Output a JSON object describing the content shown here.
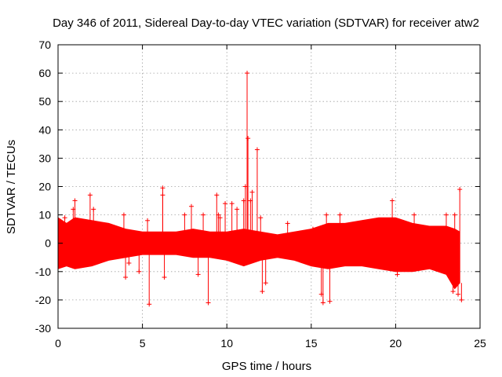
{
  "chart_data": {
    "type": "scatter",
    "title": "Day 346 of 2011, Sidereal Day-to-day VTEC variation (SDTVAR) for receiver atw2",
    "xlabel": "GPS time / hours",
    "ylabel": "SDTVAR / TECUs",
    "xlim": [
      0,
      25
    ],
    "ylim": [
      -30,
      70
    ],
    "xticks": [
      0,
      5,
      10,
      15,
      20,
      25
    ],
    "yticks": [
      -30,
      -20,
      -10,
      0,
      10,
      20,
      30,
      40,
      50,
      60,
      70
    ],
    "grid": true,
    "marker": "plus",
    "series": [
      {
        "name": "SDTVAR",
        "color": "#ff0000",
        "band": {
          "description": "dense point cloud envelope",
          "x": [
            0.0,
            0.5,
            1.0,
            2.0,
            3.0,
            4.0,
            5.0,
            6.0,
            7.0,
            8.0,
            9.0,
            10.0,
            11.0,
            12.0,
            13.0,
            14.0,
            15.0,
            16.0,
            17.0,
            18.0,
            19.0,
            20.0,
            21.0,
            22.0,
            23.0,
            23.5,
            23.8
          ],
          "upper": [
            9,
            7,
            9,
            8,
            7,
            5,
            4,
            4,
            4,
            5,
            4,
            4,
            5,
            4,
            3,
            4,
            5,
            7,
            7,
            8,
            9,
            9,
            7,
            6,
            6,
            5,
            4
          ],
          "lower": [
            -9,
            -8,
            -9,
            -8,
            -6,
            -5,
            -4,
            -4,
            -4,
            -5,
            -5,
            -6,
            -8,
            -6,
            -5,
            -6,
            -8,
            -9,
            -8,
            -8,
            -9,
            -10,
            -10,
            -9,
            -11,
            -16,
            -14
          ]
        },
        "outliers": [
          [
            0.4,
            9
          ],
          [
            0.9,
            12
          ],
          [
            1.0,
            15
          ],
          [
            1.9,
            17
          ],
          [
            2.1,
            12
          ],
          [
            3.9,
            10
          ],
          [
            4.0,
            -12
          ],
          [
            4.2,
            -7
          ],
          [
            4.8,
            -10
          ],
          [
            5.3,
            8
          ],
          [
            5.4,
            -21.5
          ],
          [
            6.2,
            19.5
          ],
          [
            6.2,
            17
          ],
          [
            6.3,
            -12
          ],
          [
            7.5,
            10
          ],
          [
            7.9,
            13
          ],
          [
            8.3,
            -11
          ],
          [
            8.6,
            10
          ],
          [
            8.9,
            -21
          ],
          [
            9.4,
            17
          ],
          [
            9.5,
            10
          ],
          [
            9.6,
            9
          ],
          [
            9.9,
            14
          ],
          [
            10.3,
            14
          ],
          [
            10.6,
            12
          ],
          [
            11.0,
            15
          ],
          [
            11.1,
            20
          ],
          [
            11.2,
            60
          ],
          [
            11.25,
            37
          ],
          [
            11.4,
            15
          ],
          [
            11.5,
            18
          ],
          [
            11.8,
            33
          ],
          [
            12.0,
            9
          ],
          [
            12.1,
            -17
          ],
          [
            12.3,
            -14
          ],
          [
            13.6,
            7
          ],
          [
            15.1,
            5
          ],
          [
            15.6,
            -18
          ],
          [
            15.7,
            -21
          ],
          [
            15.9,
            10
          ],
          [
            16.1,
            -20.5
          ],
          [
            16.7,
            10
          ],
          [
            19.8,
            15
          ],
          [
            20.1,
            -11
          ],
          [
            21.1,
            10
          ],
          [
            23.0,
            10
          ],
          [
            23.4,
            -17
          ],
          [
            23.5,
            10
          ],
          [
            23.8,
            19
          ],
          [
            23.9,
            -20
          ],
          [
            23.7,
            -18
          ]
        ]
      }
    ]
  }
}
